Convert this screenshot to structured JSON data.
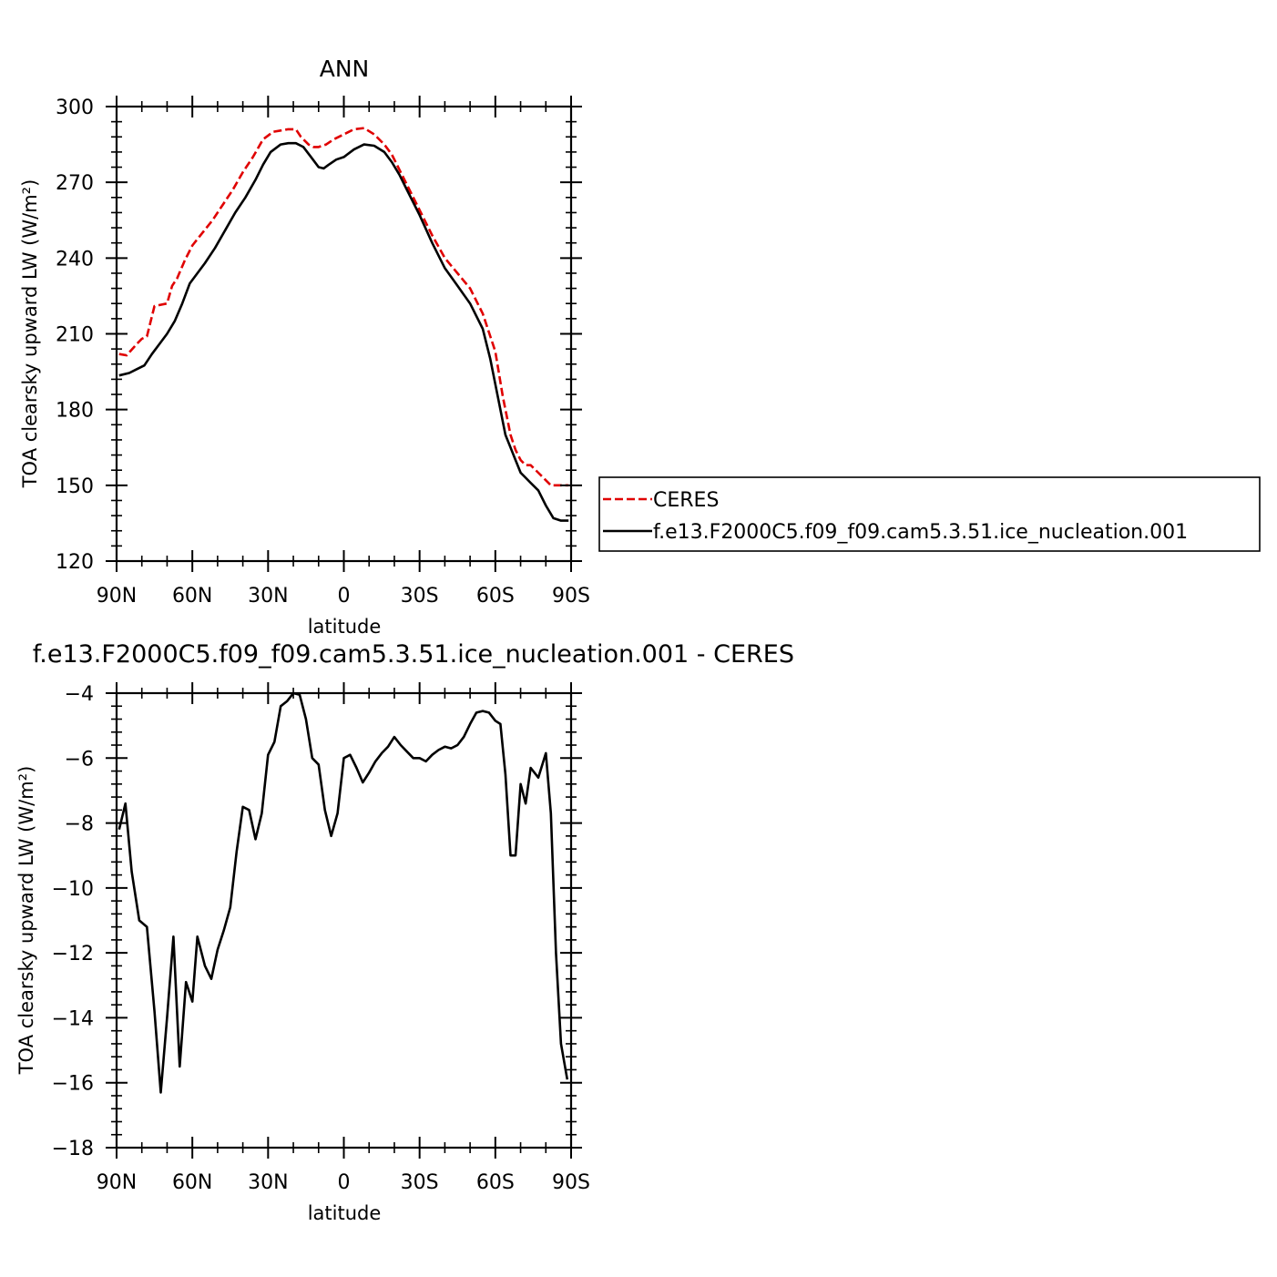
{
  "chart_data": [
    {
      "type": "line",
      "title": "ANN",
      "xlabel": "latitude",
      "ylabel": "TOA clearsky upward LW (W/m²)",
      "xlim": [
        90,
        -90
      ],
      "ylim": [
        120,
        300
      ],
      "x_ticks": [
        {
          "v": 90,
          "label": "90N"
        },
        {
          "v": 60,
          "label": "60N"
        },
        {
          "v": 30,
          "label": "30N"
        },
        {
          "v": 0,
          "label": "0"
        },
        {
          "v": -30,
          "label": "30S"
        },
        {
          "v": -60,
          "label": "60S"
        },
        {
          "v": -90,
          "label": "90S"
        }
      ],
      "y_ticks": [
        120,
        150,
        180,
        210,
        240,
        270,
        300
      ],
      "legend": "right",
      "series": [
        {
          "name": "CERES",
          "color": "#e00000",
          "dash": true,
          "x": [
            89,
            86,
            82,
            80,
            78,
            75,
            70,
            68,
            66,
            63,
            60,
            56,
            52,
            48,
            44,
            40,
            36,
            32,
            28,
            25,
            22,
            19,
            17,
            14,
            12,
            10,
            7,
            4,
            0,
            -4,
            -8,
            -12,
            -16,
            -19,
            -22,
            -25,
            -30,
            -35,
            -40,
            -45,
            -50,
            -55,
            -60,
            -63,
            -66,
            -68,
            -70,
            -72,
            -74,
            -77,
            -80,
            -82,
            -85,
            -87,
            -89
          ],
          "values": [
            202,
            201.5,
            206,
            208,
            209,
            221,
            222,
            229,
            232,
            239,
            245,
            250,
            255,
            261,
            267,
            274,
            280,
            287,
            290,
            290.5,
            291,
            291,
            288,
            285,
            284,
            284,
            285,
            287,
            289,
            291,
            291.5,
            289,
            285,
            281,
            275,
            269,
            259,
            249,
            240,
            234,
            228,
            218,
            203,
            185,
            170,
            164,
            160,
            158,
            158,
            155,
            152,
            150,
            150,
            150,
            150
          ]
        },
        {
          "name": "f.e13.F2000C5.f09_f09.cam5.3.51.ice_nucleation.001",
          "color": "#000000",
          "dash": false,
          "x": [
            89,
            85,
            82,
            79,
            76,
            73,
            70,
            67,
            64,
            61,
            58,
            55,
            51,
            47,
            43,
            39,
            35,
            32,
            29,
            25,
            22,
            19,
            16,
            13,
            10,
            8,
            6,
            3,
            0,
            -4,
            -8,
            -12,
            -16,
            -19,
            -22,
            -25,
            -30,
            -35,
            -40,
            -45,
            -50,
            -55,
            -58,
            -61,
            -64,
            -66,
            -68,
            -70,
            -72,
            -74,
            -77,
            -80,
            -83,
            -86,
            -89
          ],
          "values": [
            193.5,
            194.5,
            196,
            197.5,
            202,
            206,
            210,
            215,
            222,
            230,
            234,
            238,
            244,
            251,
            258,
            264,
            271,
            277,
            282,
            285,
            285.5,
            285.5,
            284,
            280,
            276,
            275.5,
            277,
            279,
            280,
            283,
            285,
            284.5,
            282,
            278,
            273,
            267,
            257,
            246,
            236,
            229,
            222,
            212,
            200,
            185,
            170,
            165,
            160,
            155,
            153,
            151,
            148,
            142,
            137,
            136,
            136
          ]
        }
      ]
    },
    {
      "type": "line",
      "title": "f.e13.F2000C5.f09_f09.cam5.3.51.ice_nucleation.001 - CERES",
      "xlabel": "latitude",
      "ylabel": "TOA clearsky upward LW (W/m²)",
      "xlim": [
        90,
        -90
      ],
      "ylim": [
        -18,
        -4
      ],
      "x_ticks": [
        {
          "v": 90,
          "label": "90N"
        },
        {
          "v": 60,
          "label": "60N"
        },
        {
          "v": 30,
          "label": "30N"
        },
        {
          "v": 0,
          "label": "0"
        },
        {
          "v": -30,
          "label": "30S"
        },
        {
          "v": -60,
          "label": "60S"
        },
        {
          "v": -90,
          "label": "90S"
        }
      ],
      "y_ticks": [
        -18,
        -16,
        -14,
        -12,
        -10,
        -8,
        -6,
        -4
      ],
      "series": [
        {
          "name": "",
          "color": "#000000",
          "dash": false,
          "x": [
            89,
            86.5,
            84,
            81,
            78,
            75,
            72.5,
            70,
            67.5,
            65,
            62.5,
            60,
            58,
            55,
            52.5,
            50,
            47.5,
            45,
            42.5,
            40,
            37.5,
            35,
            32.5,
            30,
            27.5,
            25,
            22.5,
            20,
            17.5,
            15,
            12.5,
            10,
            7.5,
            5,
            2.5,
            0,
            -2.5,
            -5,
            -7.5,
            -10,
            -12.5,
            -15,
            -17.5,
            -20,
            -22.5,
            -25,
            -27.5,
            -30,
            -32.5,
            -35,
            -37.5,
            -40,
            -42.5,
            -45,
            -47.5,
            -50,
            -52.5,
            -55,
            -57.5,
            -60,
            -62,
            -64,
            -66,
            -68,
            -70,
            -72,
            -74,
            -77,
            -80,
            -82,
            -84,
            -86,
            -88.5
          ],
          "values": [
            -8.2,
            -7.4,
            -9.5,
            -11,
            -11.2,
            -13.8,
            -16.3,
            -14.0,
            -11.5,
            -15.5,
            -12.9,
            -13.5,
            -11.5,
            -12.4,
            -12.8,
            -11.9,
            -11.3,
            -10.6,
            -8.9,
            -7.5,
            -7.6,
            -8.5,
            -7.7,
            -5.9,
            -5.5,
            -4.4,
            -4.25,
            -4.0,
            -4.05,
            -4.8,
            -6.0,
            -6.2,
            -7.6,
            -8.4,
            -7.7,
            -6.0,
            -5.9,
            -6.3,
            -6.75,
            -6.45,
            -6.1,
            -5.85,
            -5.65,
            -5.35,
            -5.6,
            -5.8,
            -6.0,
            -6.0,
            -6.1,
            -5.9,
            -5.75,
            -5.65,
            -5.7,
            -5.6,
            -5.35,
            -4.95,
            -4.6,
            -4.55,
            -4.6,
            -4.85,
            -4.95,
            -6.5,
            -9.0,
            -9.0,
            -6.8,
            -7.4,
            -6.3,
            -6.6,
            -5.85,
            -7.7,
            -12.0,
            -14.8,
            -15.9
          ]
        }
      ]
    }
  ]
}
